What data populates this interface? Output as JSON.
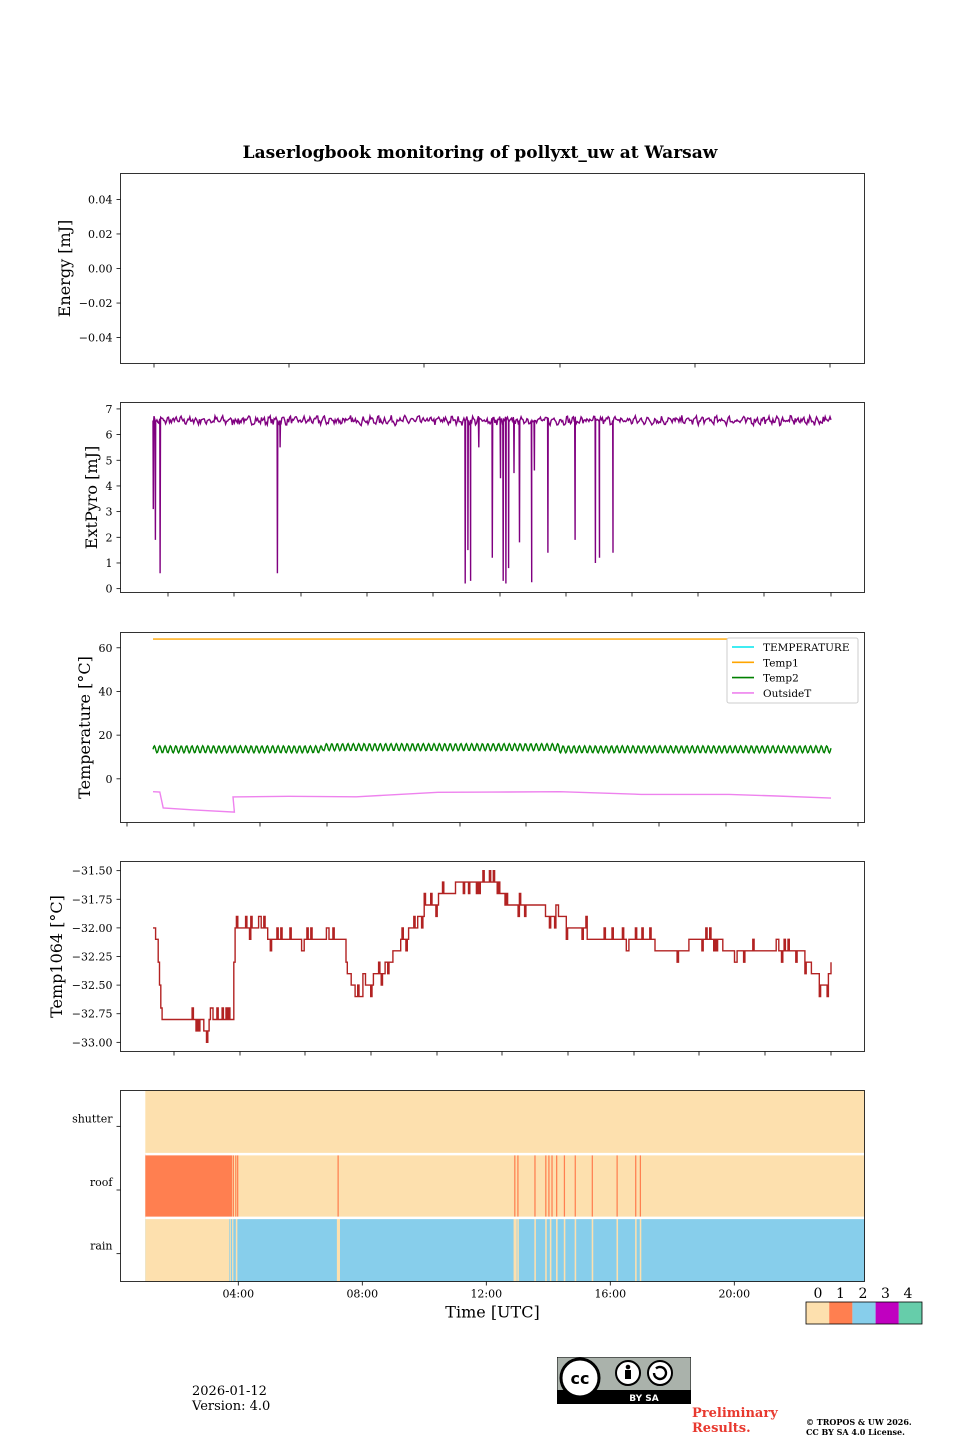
{
  "figure_title": "Laserlogbook monitoring of pollyxt_uw at Warsaw",
  "footer": {
    "date": "2026-01-12",
    "version": "Version: 4.0",
    "preliminary": "Preliminary Results.",
    "copyright": "© TROPOS & UW 2026. CC BY SA 4.0 License.",
    "cc_label": "BY SA"
  },
  "colors": {
    "energy": "#800080",
    "extpyro": "#800080",
    "temperature": "#00e5ee",
    "temp1": "#ffa500",
    "temp2": "#008000",
    "outside": "#ee82ee",
    "temp1064": "#b22222",
    "status": [
      "#fde0ae",
      "#ff7f50",
      "#87ceeb",
      "#c000c0",
      "#66cdaa"
    ]
  },
  "chart_data": [
    {
      "type": "line",
      "id": "energy",
      "ylabel": "Energy [mJ]",
      "ylim": [
        -0.055,
        0.055
      ],
      "yticks": [
        -0.04,
        -0.02,
        0.0,
        0.02,
        0.04
      ],
      "ytick_labels": [
        "−0.04",
        "−0.02",
        "0.00",
        "0.02",
        "0.04"
      ],
      "xlim": [
        -0.05,
        1.05
      ],
      "series": []
    },
    {
      "type": "line",
      "id": "extpyro",
      "ylabel": "ExtPyro [mJ]",
      "ylim": [
        -0.15,
        7.25
      ],
      "yticks": [
        0,
        1,
        2,
        3,
        4,
        5,
        6,
        7
      ],
      "ytick_labels": [
        "0",
        "1",
        "2",
        "3",
        "4",
        "5",
        "6",
        "7"
      ],
      "baseline": 6.55,
      "series_name": "ExtPyro",
      "dips": [
        [
          0.0,
          3.1
        ],
        [
          0.003,
          1.9
        ],
        [
          0.01,
          0.6
        ],
        [
          0.183,
          0.6
        ],
        [
          0.187,
          5.5
        ],
        [
          0.46,
          0.2
        ],
        [
          0.464,
          1.5
        ],
        [
          0.468,
          0.3
        ],
        [
          0.48,
          5.5
        ],
        [
          0.5,
          1.2
        ],
        [
          0.512,
          4.3
        ],
        [
          0.516,
          0.3
        ],
        [
          0.52,
          0.2
        ],
        [
          0.524,
          0.8
        ],
        [
          0.532,
          4.5
        ],
        [
          0.54,
          1.8
        ],
        [
          0.558,
          0.25
        ],
        [
          0.562,
          4.6
        ],
        [
          0.582,
          1.4
        ],
        [
          0.622,
          1.9
        ],
        [
          0.652,
          1.0
        ],
        [
          0.658,
          1.2
        ],
        [
          0.678,
          1.4
        ]
      ]
    },
    {
      "type": "line",
      "id": "temperature",
      "ylabel": "Temperature [°C]",
      "ylim": [
        -20,
        67
      ],
      "yticks": [
        0,
        20,
        40,
        60
      ],
      "ytick_labels": [
        "0",
        "20",
        "40",
        "60"
      ],
      "legend": [
        "TEMPERATURE",
        "Temp1",
        "Temp2",
        "OutsideT"
      ],
      "legend_loc": "top-right",
      "series": [
        {
          "name": "TEMPERATURE",
          "values": []
        },
        {
          "name": "Temp1",
          "constant": 64
        },
        {
          "name": "Temp2",
          "mean": 13.5,
          "amplitude": 1.6
        },
        {
          "name": "OutsideT",
          "x": [
            0.0,
            0.01,
            0.015,
            0.06,
            0.12,
            0.118,
            0.2,
            0.3,
            0.42,
            0.5,
            0.6,
            0.72,
            0.85,
            0.92,
            1.0
          ],
          "values": [
            -6,
            -6,
            -13,
            -14,
            -15,
            -8,
            -8,
            -8,
            -6,
            -6,
            -6,
            -7,
            -7,
            -8,
            -9
          ]
        }
      ]
    },
    {
      "type": "line",
      "id": "temp1064",
      "ylabel": "Temp1064 [°C]",
      "ylim": [
        -33.08,
        -31.42
      ],
      "yticks": [
        -33.0,
        -32.75,
        -32.5,
        -32.25,
        -32.0,
        -31.75,
        -31.5
      ],
      "ytick_labels": [
        "−33.00",
        "−32.75",
        "−32.50",
        "−32.25",
        "−32.00",
        "−31.75",
        "−31.50"
      ],
      "series_name": "Temp1064",
      "x": [
        0.0,
        0.006,
        0.012,
        0.07,
        0.078,
        0.085,
        0.118,
        0.12,
        0.14,
        0.2,
        0.28,
        0.285,
        0.3,
        0.34,
        0.37,
        0.4,
        0.43,
        0.46,
        0.5,
        0.53,
        0.58,
        0.62,
        0.66,
        0.72,
        0.76,
        0.82,
        0.86,
        0.96,
        0.975,
        0.99,
        1.0
      ],
      "values": [
        -32.0,
        -32.1,
        -32.8,
        -32.8,
        -32.9,
        -32.8,
        -32.8,
        -32.0,
        -32.0,
        -32.1,
        -32.1,
        -32.35,
        -32.6,
        -32.35,
        -32.1,
        -31.85,
        -31.7,
        -31.6,
        -31.6,
        -31.8,
        -31.85,
        -32.0,
        -32.1,
        -32.1,
        -32.2,
        -32.1,
        -32.2,
        -32.25,
        -32.4,
        -32.5,
        -32.4
      ]
    },
    {
      "type": "heatmap",
      "id": "status",
      "xlabel": "Time [UTC]",
      "rows": [
        "shutter",
        "roof",
        "rain"
      ],
      "xticks": [
        4,
        8,
        12,
        16,
        20
      ],
      "xtick_labels": [
        "04:00",
        "08:00",
        "12:00",
        "16:00",
        "20:00"
      ],
      "xlim_hours": [
        0.2,
        24.2
      ],
      "data_start_hour": 1.0,
      "roof_state1_intervals_hours": [
        [
          1.0,
          3.8
        ],
        [
          3.82,
          3.86
        ],
        [
          3.9,
          3.93
        ],
        [
          3.96,
          4.0
        ],
        [
          7.2,
          7.24
        ],
        [
          12.9,
          12.94
        ],
        [
          13.0,
          13.04
        ],
        [
          13.55,
          13.59
        ],
        [
          13.9,
          13.94
        ],
        [
          14.0,
          14.04
        ],
        [
          14.1,
          14.14
        ],
        [
          14.25,
          14.29
        ],
        [
          14.5,
          14.54
        ],
        [
          14.85,
          14.89
        ],
        [
          15.4,
          15.44
        ],
        [
          16.2,
          16.24
        ],
        [
          16.8,
          16.84
        ],
        [
          16.95,
          16.99
        ]
      ],
      "rain_state0_intervals_hours": [
        [
          1.0,
          3.7
        ],
        [
          3.72,
          3.75
        ],
        [
          3.8,
          3.84
        ],
        [
          3.92,
          3.97
        ],
        [
          7.18,
          7.28
        ],
        [
          12.88,
          12.98
        ],
        [
          13.0,
          13.05
        ],
        [
          13.55,
          13.6
        ],
        [
          13.9,
          13.95
        ],
        [
          14.05,
          14.1
        ],
        [
          14.25,
          14.3
        ],
        [
          14.5,
          14.55
        ],
        [
          14.85,
          14.9
        ],
        [
          15.4,
          15.45
        ],
        [
          16.2,
          16.25
        ],
        [
          16.8,
          16.85
        ],
        [
          16.95,
          17.0
        ]
      ],
      "colorbar_labels": [
        "0",
        "1",
        "2",
        "3",
        "4"
      ]
    }
  ]
}
